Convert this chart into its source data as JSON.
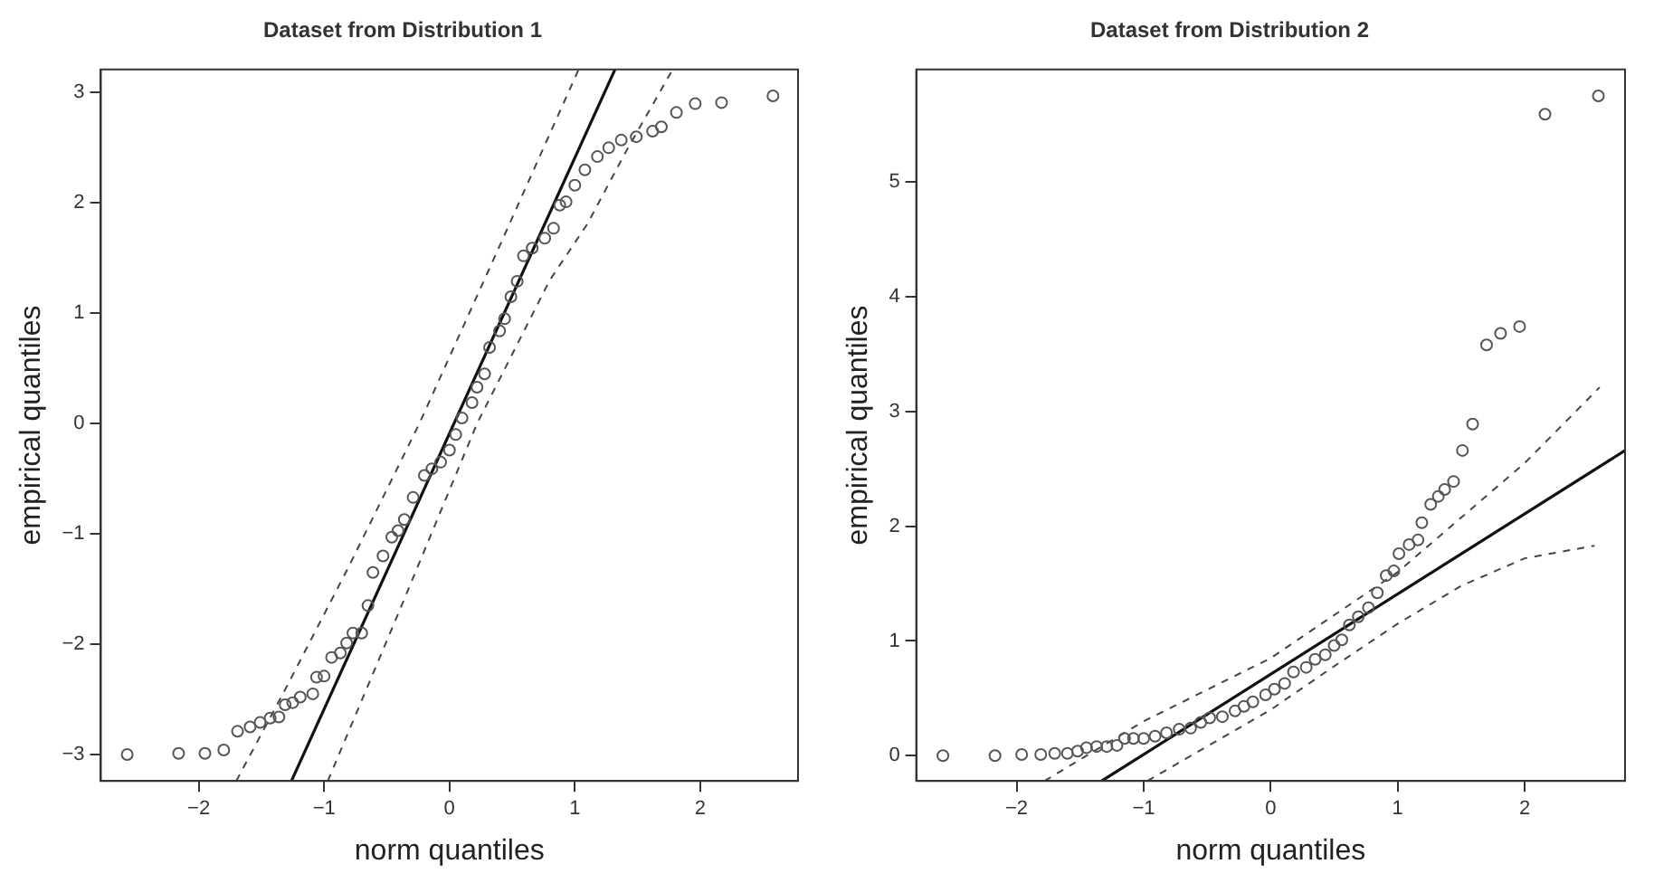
{
  "chart_data": [
    {
      "type": "scatter",
      "title": "Dataset from Distribution 1",
      "xlabel": "norm quantiles",
      "ylabel": "empirical quantiles",
      "xlim": [
        -2.78,
        2.78
      ],
      "ylim": [
        -3.24,
        3.21
      ],
      "xticks": [
        -2,
        -1,
        0,
        1,
        2
      ],
      "yticks": [
        -3,
        -2,
        -1,
        0,
        1,
        2,
        3
      ],
      "grid": false,
      "legend": false,
      "series": [
        {
          "type": "scatter",
          "marker": "circle",
          "color": "#555555",
          "x": [
            -2.57,
            -2.16,
            -1.95,
            -1.8,
            -1.69,
            -1.59,
            -1.51,
            -1.43,
            -1.36,
            -1.31,
            -1.25,
            -1.19,
            -1.09,
            -1.06,
            -1.0,
            -0.94,
            -0.87,
            -0.82,
            -0.77,
            -0.7,
            -0.65,
            -0.61,
            -0.53,
            -0.46,
            -0.41,
            -0.36,
            -0.29,
            -0.2,
            -0.14,
            -0.07,
            0.0,
            0.05,
            0.1,
            0.18,
            0.22,
            0.28,
            0.32,
            0.4,
            0.44,
            0.49,
            0.54,
            0.59,
            0.66,
            0.76,
            0.83,
            0.88,
            0.93,
            1.0,
            1.08,
            1.18,
            1.27,
            1.37,
            1.49,
            1.62,
            1.69,
            1.81,
            1.96,
            2.17,
            2.58
          ],
          "values": [
            -3.0,
            -2.99,
            -2.99,
            -2.96,
            -2.79,
            -2.75,
            -2.71,
            -2.67,
            -2.66,
            -2.55,
            -2.53,
            -2.48,
            -2.45,
            -2.3,
            -2.29,
            -2.12,
            -2.08,
            -1.99,
            -1.9,
            -1.9,
            -1.65,
            -1.35,
            -1.2,
            -1.03,
            -0.97,
            -0.87,
            -0.67,
            -0.47,
            -0.41,
            -0.35,
            -0.24,
            -0.1,
            0.05,
            0.19,
            0.33,
            0.45,
            0.69,
            0.84,
            0.95,
            1.15,
            1.29,
            1.52,
            1.59,
            1.68,
            1.77,
            1.98,
            2.01,
            2.16,
            2.3,
            2.42,
            2.5,
            2.57,
            2.6,
            2.65,
            2.69,
            2.82,
            2.9,
            2.91,
            2.97
          ]
        },
        {
          "type": "line",
          "marker": "none",
          "line_style": "solid",
          "color": "#111111",
          "x": [
            -1.26,
            1.32
          ],
          "values": [
            -3.24,
            3.21
          ]
        },
        {
          "type": "line",
          "marker": "none",
          "line_style": "dashed",
          "color": "#444444",
          "x": [
            -1.7,
            -1.3,
            -0.8,
            -0.24,
            0.4,
            1.03
          ],
          "values": [
            -3.24,
            -2.39,
            -1.29,
            0.0,
            1.61,
            3.21
          ]
        },
        {
          "type": "line",
          "marker": "none",
          "line_style": "dashed",
          "color": "#444444",
          "x": [
            -0.97,
            -0.4,
            0.22,
            0.8,
            1.1,
            1.4,
            1.78
          ],
          "values": [
            -3.24,
            -1.7,
            0.0,
            1.3,
            1.81,
            2.45,
            3.21
          ]
        }
      ]
    },
    {
      "type": "scatter",
      "title": "Dataset from Distribution 2",
      "xlabel": "norm quantiles",
      "ylabel": "empirical quantiles",
      "xlim": [
        -2.79,
        2.79
      ],
      "ylim": [
        -0.22,
        5.98
      ],
      "xticks": [
        -2,
        -1,
        0,
        1,
        2
      ],
      "yticks": [
        0,
        1,
        2,
        3,
        4,
        5
      ],
      "grid": false,
      "legend": false,
      "series": [
        {
          "type": "scatter",
          "marker": "circle",
          "color": "#555555",
          "x": [
            -2.58,
            -2.17,
            -1.96,
            -1.81,
            -1.7,
            -1.6,
            -1.52,
            -1.45,
            -1.37,
            -1.29,
            -1.21,
            -1.15,
            -1.08,
            -1.0,
            -0.91,
            -0.82,
            -0.72,
            -0.63,
            -0.55,
            -0.48,
            -0.38,
            -0.28,
            -0.21,
            -0.14,
            -0.04,
            0.03,
            0.11,
            0.18,
            0.28,
            0.35,
            0.43,
            0.5,
            0.56,
            0.62,
            0.69,
            0.77,
            0.84,
            0.91,
            0.97,
            1.01,
            1.09,
            1.16,
            1.19,
            1.26,
            1.32,
            1.37,
            1.44,
            1.51,
            1.59,
            1.7,
            1.81,
            1.96,
            2.16,
            2.58
          ],
          "values": [
            0.0,
            0.0,
            0.01,
            0.01,
            0.02,
            0.02,
            0.04,
            0.07,
            0.08,
            0.08,
            0.09,
            0.15,
            0.15,
            0.15,
            0.17,
            0.2,
            0.23,
            0.24,
            0.29,
            0.33,
            0.34,
            0.39,
            0.43,
            0.47,
            0.53,
            0.58,
            0.63,
            0.73,
            0.77,
            0.84,
            0.88,
            0.96,
            1.01,
            1.14,
            1.21,
            1.29,
            1.42,
            1.57,
            1.61,
            1.76,
            1.84,
            1.88,
            2.03,
            2.19,
            2.26,
            2.32,
            2.39,
            2.66,
            2.89,
            3.58,
            3.68,
            3.74,
            5.59,
            5.75
          ]
        },
        {
          "type": "line",
          "marker": "none",
          "line_style": "solid",
          "color": "#111111",
          "x": [
            -1.33,
            2.79
          ],
          "values": [
            -0.22,
            2.66
          ]
        },
        {
          "type": "line",
          "marker": "none",
          "line_style": "dashed",
          "color": "#444444",
          "x": [
            -1.78,
            -1.0,
            0.0,
            1.0,
            2.0,
            2.59
          ],
          "values": [
            -0.22,
            0.3,
            0.85,
            1.6,
            2.55,
            3.21
          ]
        },
        {
          "type": "line",
          "marker": "none",
          "line_style": "dashed",
          "color": "#444444",
          "x": [
            -0.97,
            0.0,
            0.5,
            1.0,
            1.5,
            2.0,
            2.55
          ],
          "values": [
            -0.22,
            0.4,
            0.78,
            1.15,
            1.48,
            1.72,
            1.83
          ]
        }
      ]
    }
  ]
}
